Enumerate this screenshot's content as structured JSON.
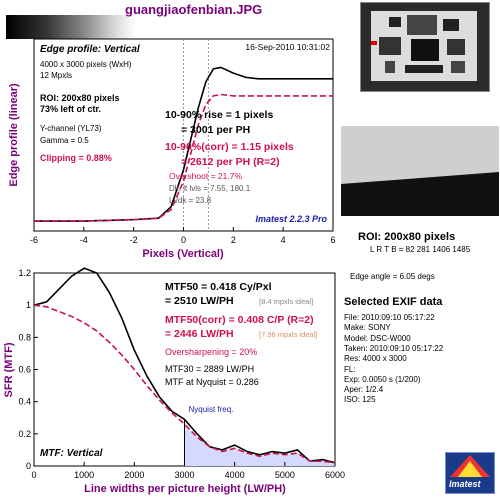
{
  "header": {
    "filename": "guangjiaofenbian.JPG"
  },
  "chart_data": [
    {
      "type": "line",
      "title": "Edge profile: Vertical",
      "timestamp": "16-Sep-2010 10:31:02",
      "xlabel": "Pixels (Vertical)",
      "ylabel": "Edge profile (linear)",
      "xlim": [
        -6,
        6
      ],
      "xticks": [
        "-6",
        "-4",
        "-2",
        "0",
        "2",
        "4",
        "6"
      ],
      "series": [
        {
          "style": "solid-black",
          "x": [
            -6,
            -4,
            -2,
            -1,
            -0.5,
            0,
            0.3,
            0.6,
            0.9,
            1.2,
            1.5,
            2,
            2.5,
            3,
            4,
            5,
            6
          ],
          "y": [
            0.02,
            0.02,
            0.03,
            0.04,
            0.12,
            0.38,
            0.6,
            0.82,
            1.0,
            1.09,
            1.1,
            1.06,
            1.03,
            1.02,
            1.02,
            1.02,
            1.02
          ]
        },
        {
          "style": "dashed-red",
          "x": [
            -6,
            -4,
            -2,
            -1,
            -0.5,
            0,
            0.3,
            0.6,
            0.9,
            1.2,
            1.5,
            2,
            2.5,
            3,
            4,
            5,
            6
          ],
          "y": [
            0.02,
            0.02,
            0.03,
            0.04,
            0.1,
            0.3,
            0.5,
            0.7,
            0.84,
            0.9,
            0.91,
            0.9,
            0.9,
            0.9,
            0.9,
            0.9,
            0.9
          ]
        }
      ],
      "info": {
        "size": "4000 x 3000 pixels (WxH)",
        "mpxls": "12 Mpxls",
        "roi": "ROI: 200x80 pixels",
        "roi_pos": "73% left of ctr.",
        "channel": "Y-channel (YL73)",
        "gamma": "Gamma = 0.5",
        "clipping": "Clipping =  0.88%"
      },
      "results": {
        "rise": "10-90% rise = 1 pixels",
        "rise_ph": "= 3001 per PH",
        "rise_corr": "10-90%(corr) = 1.15 pixels",
        "rise_corr_ph": "= 2612 per PH  (R=2)",
        "overshoot": "Overshoot = 21.7%",
        "dk": "Dk, lt lvls = 7.55, 180.1",
        "ltdk": "Lt/dk = 23.8",
        "version": "Imatest 2.2.3 Pro"
      }
    },
    {
      "type": "line",
      "title": "MTF: Vertical",
      "xlabel": "Line widths per picture height (LW/PH)",
      "ylabel": "SFR (MTF)",
      "xlim": [
        0,
        6000
      ],
      "ylim": [
        0,
        1.2
      ],
      "xticks": [
        "0",
        "1000",
        "2000",
        "3000",
        "4000",
        "5000",
        "6000"
      ],
      "yticks": [
        "0",
        "0.2",
        "0.4",
        "0.6",
        "0.8",
        "1",
        "1.2"
      ],
      "nyquist_x": 3000,
      "nyquist_label": "Nyquist freq.",
      "series": [
        {
          "style": "solid-black",
          "x": [
            0,
            250,
            500,
            750,
            1000,
            1250,
            1500,
            1750,
            2000,
            2250,
            2500,
            2750,
            3000,
            3250,
            3500,
            3750,
            4000,
            4250,
            4500,
            4750,
            5000,
            5250,
            5500,
            5750,
            6000
          ],
          "y": [
            1.0,
            1.02,
            1.1,
            1.18,
            1.23,
            1.2,
            1.08,
            0.92,
            0.72,
            0.56,
            0.43,
            0.34,
            0.29,
            0.2,
            0.12,
            0.1,
            0.13,
            0.09,
            0.07,
            0.09,
            0.08,
            0.1,
            0.03,
            0.04,
            0.02
          ]
        },
        {
          "style": "dashed-red",
          "x": [
            0,
            250,
            500,
            750,
            1000,
            1250,
            1500,
            1750,
            2000,
            2250,
            2500,
            2750,
            3000,
            3250,
            3500,
            3750,
            4000,
            4250,
            4500,
            4750,
            5000,
            5250,
            5500,
            5750,
            6000
          ],
          "y": [
            1.0,
            0.99,
            0.96,
            0.93,
            0.89,
            0.84,
            0.77,
            0.69,
            0.6,
            0.5,
            0.41,
            0.33,
            0.26,
            0.18,
            0.12,
            0.09,
            0.11,
            0.08,
            0.06,
            0.08,
            0.07,
            0.08,
            0.03,
            0.03,
            0.02
          ]
        }
      ],
      "results": {
        "mtf50": "MTF50 = 0.418 Cy/Pxl",
        "mtf50_lw": "= 2510 LW/PH",
        "ideal1": "[8.4 mpxls ideal]",
        "mtf50c": "MTF50(corr) = 0.408 C/P  (R=2)",
        "mtf50c_lw": "= 2446 LW/PH",
        "ideal2": "[7.96 mpxls ideal]",
        "oversharpening": "Oversharpening = 20%",
        "mtf30": "MTF30 = 2889 LW/PH",
        "mtf_nyq": "MTF at Nyquist = 0.286"
      }
    }
  ],
  "roi_panel": {
    "title": "ROI: 200x80 pixels",
    "coords": "L R  T B = 82 281  1406 1485",
    "edge_angle": "Edge angle = 6.05 degs"
  },
  "exif": {
    "title": "Selected EXIF data",
    "rows": [
      "File:  2010:09:10 05:17:22",
      "Make:  SONY",
      "Model:  DSC-W000",
      "Taken:  2010:09:10 05:17:22",
      "Res:  4000 x 3000",
      "FL:",
      "Exp:    0.0050 s  (1/200)",
      "Aper:   1/2.4",
      "ISO:    125"
    ]
  },
  "logo": {
    "text": "Imatest"
  }
}
